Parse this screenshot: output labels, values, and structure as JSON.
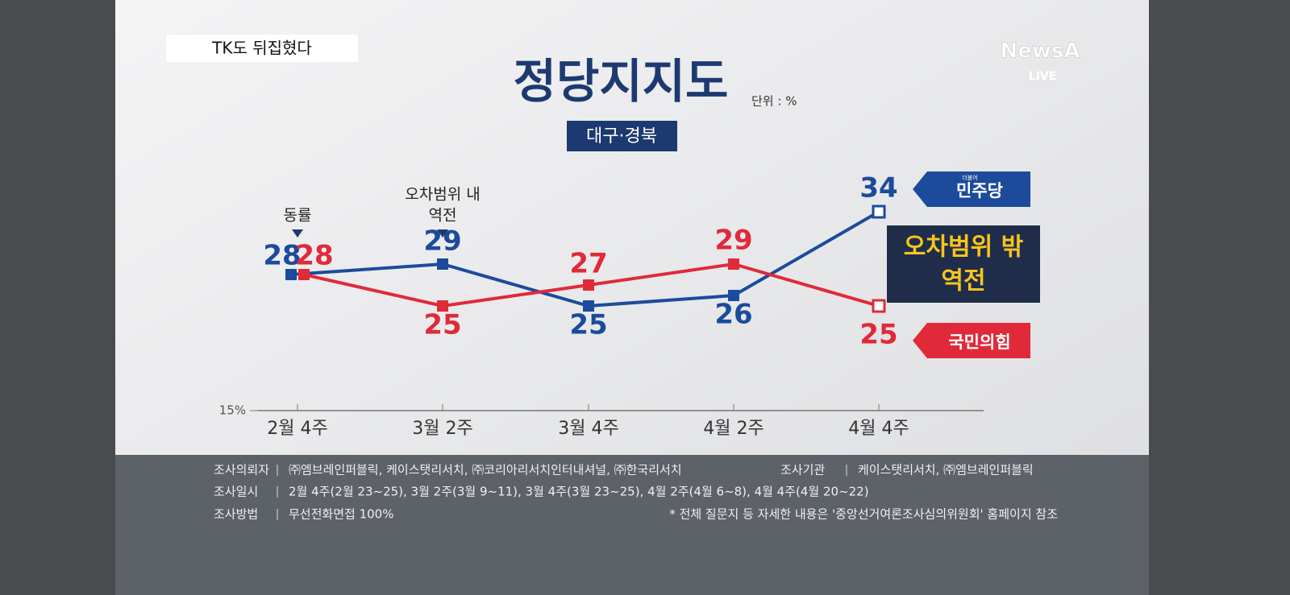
{
  "header": {
    "tag": "TK도 뒤집혔다",
    "logo": "NewsA",
    "live": "LIVE"
  },
  "chart_data": {
    "type": "line",
    "title": "정당지지도",
    "unit": "단위 : %",
    "subtitle": "대구·경북",
    "categories": [
      "2월 4주",
      "3월 2주",
      "3월 4주",
      "4월 2주",
      "4월 4주"
    ],
    "series": [
      {
        "name": "민주당",
        "name_prefix": "더불어",
        "color": "#1c4b9b",
        "values": [
          28,
          29,
          25,
          26,
          34
        ]
      },
      {
        "name": "국민의힘",
        "color": "#e02a3a",
        "values": [
          28,
          25,
          27,
          29,
          25
        ]
      }
    ],
    "ylim": [
      15,
      40
    ],
    "yticks": [
      {
        "value": 15,
        "label": "15%"
      }
    ],
    "annotations": [
      {
        "lines": [
          "동률"
        ],
        "category": 0
      },
      {
        "lines": [
          "오차범위 내",
          "역전"
        ],
        "category": 1
      },
      {
        "lines": [
          "오차범위 밖",
          "역전"
        ],
        "category": 4
      }
    ]
  },
  "footer": {
    "rows": [
      [
        {
          "label": "조사의뢰자",
          "text": "㈜엠브레인퍼블릭, 케이스탯리서치, ㈜코리아리서치인터내셔널, ㈜한국리서치"
        },
        {
          "label": "조사기관",
          "text": "케이스탯리서치, ㈜엠브레인퍼블릭"
        }
      ],
      [
        {
          "label": "조사일시",
          "text": "2월 4주(2월 23~25), 3월 2주(3월 9~11), 3월 4주(3월 23~25), 4월 2주(4월 6~8), 4월 4주(4월 20~22)"
        }
      ],
      [
        {
          "label": "조사방법",
          "text": "무선전화면접 100%"
        },
        {
          "text": "* 전체 질문지 등 자세한 내용은 '중앙선거여론조사심의위원회' 홈페이지 참조"
        }
      ]
    ]
  }
}
